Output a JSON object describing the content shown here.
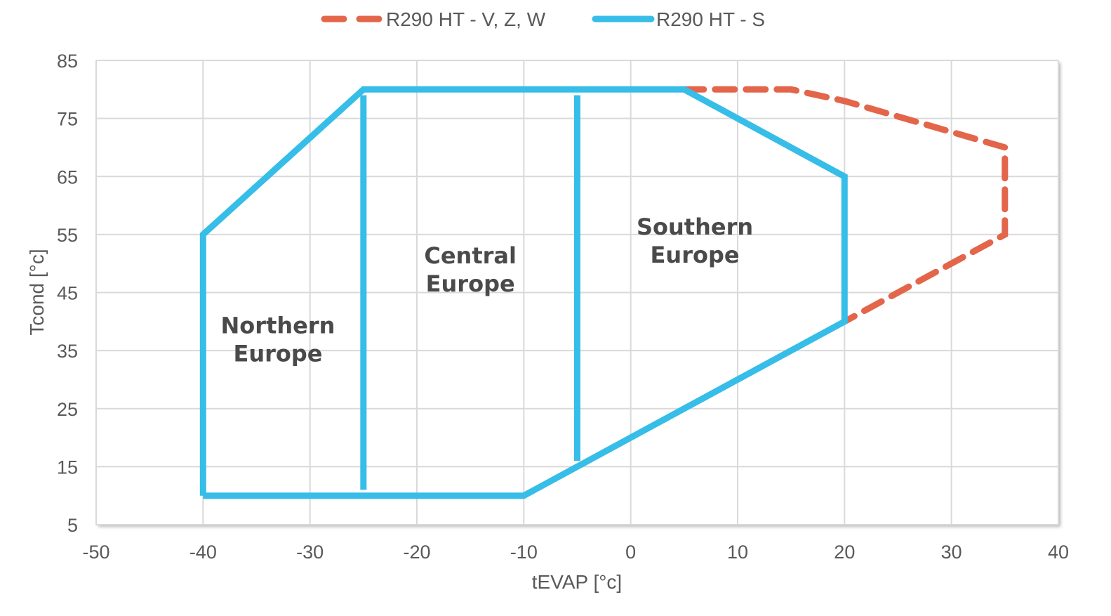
{
  "chart_data": {
    "type": "line",
    "title": "",
    "xlabel": "tEVAP [°c]",
    "ylabel": "Tcond [°c]",
    "xlim": [
      -50,
      40
    ],
    "ylim": [
      5,
      85
    ],
    "x_ticks": [
      -50,
      -40,
      -30,
      -20,
      -10,
      0,
      10,
      20,
      30,
      40
    ],
    "y_ticks": [
      5,
      15,
      25,
      35,
      45,
      55,
      65,
      75,
      85
    ],
    "grid": true,
    "legend_position": "top",
    "series": [
      {
        "name": "R290 HT - V, Z, W",
        "style": "dashed",
        "color": "#e3654a",
        "points": [
          [
            5,
            80
          ],
          [
            15,
            80
          ],
          [
            20,
            78
          ],
          [
            35,
            70
          ],
          [
            35,
            55
          ],
          [
            20,
            40
          ]
        ]
      },
      {
        "name": "R290 HT - S",
        "style": "solid",
        "color": "#36bde8",
        "points": [
          [
            -40,
            10
          ],
          [
            -40,
            55
          ],
          [
            -25,
            80
          ],
          [
            5,
            80
          ],
          [
            20,
            65
          ],
          [
            20,
            40
          ],
          [
            -10,
            10
          ],
          [
            -40,
            10
          ]
        ]
      }
    ],
    "dividers": [
      {
        "x": -25,
        "y_from": 11,
        "y_to": 79
      },
      {
        "x": -5,
        "y_from": 16,
        "y_to": 79
      }
    ],
    "annotations": [
      {
        "lines": [
          "Northern",
          "Europe"
        ],
        "x": -33,
        "y": 38
      },
      {
        "lines": [
          "Central",
          "Europe"
        ],
        "x": -15,
        "y": 50
      },
      {
        "lines": [
          "Southern",
          "Europe"
        ],
        "x": 6,
        "y": 55
      }
    ]
  }
}
